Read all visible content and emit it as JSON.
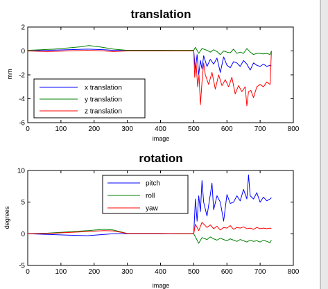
{
  "chart_data": [
    {
      "type": "line",
      "title": "translation",
      "xlabel": "image",
      "ylabel": "mm",
      "xlim": [
        0,
        800
      ],
      "ylim": [
        -6,
        2
      ],
      "xticks": [
        0,
        100,
        200,
        300,
        400,
        500,
        600,
        700,
        800
      ],
      "yticks": [
        -6,
        -4,
        -2,
        0,
        2
      ],
      "grid": false,
      "legend_position": "bottom-left",
      "series": [
        {
          "name": "x translation",
          "color": "#0000ff",
          "x": [
            0,
            60,
            120,
            180,
            230,
            258,
            300,
            400,
            500,
            505,
            510,
            515,
            520,
            525,
            530,
            540,
            550,
            560,
            570,
            580,
            590,
            600,
            610,
            620,
            630,
            640,
            650,
            660,
            670,
            680,
            690,
            700,
            710,
            720,
            730,
            734
          ],
          "values": [
            0,
            0.05,
            0.1,
            0.15,
            0.1,
            0.05,
            0.05,
            0.05,
            0,
            -1.6,
            -0.3,
            -2.0,
            -0.8,
            -1.5,
            -0.4,
            -1.3,
            -0.7,
            -1.1,
            -0.6,
            -1.8,
            -0.5,
            -1.2,
            -1.4,
            -0.9,
            -1.0,
            -1.3,
            -0.8,
            -1.1,
            -1.6,
            -1.0,
            -1.2,
            -1.3,
            -1.1,
            -1.3,
            -1.2,
            -1.25
          ]
        },
        {
          "name": "y translation",
          "color": "#008000",
          "x": [
            0,
            40,
            80,
            120,
            160,
            185,
            215,
            258,
            300,
            400,
            500,
            505,
            515,
            525,
            540,
            550,
            560,
            570,
            580,
            590,
            600,
            610,
            620,
            630,
            640,
            650,
            660,
            670,
            680,
            690,
            700,
            710,
            720,
            730,
            734
          ],
          "values": [
            0.05,
            0.1,
            0.15,
            0.25,
            0.35,
            0.45,
            0.35,
            0.15,
            0.05,
            0.05,
            0.05,
            0.3,
            -0.2,
            0.2,
            0.05,
            -0.1,
            0.1,
            -0.05,
            -0.3,
            0,
            -0.1,
            -0.15,
            0.15,
            -0.2,
            -0.1,
            -0.2,
            0.2,
            -0.1,
            -0.3,
            -0.2,
            -0.2,
            -0.25,
            -0.2,
            -0.3,
            0
          ]
        },
        {
          "name": "z translation",
          "color": "#ff0000",
          "x": [
            0,
            60,
            120,
            180,
            230,
            258,
            300,
            400,
            500,
            503,
            507,
            512,
            516,
            520,
            525,
            530,
            535,
            545,
            555,
            565,
            575,
            585,
            595,
            605,
            615,
            625,
            635,
            645,
            655,
            660,
            665,
            672,
            680,
            690,
            700,
            710,
            720,
            730,
            734
          ],
          "values": [
            0,
            -0.05,
            0,
            0.05,
            0,
            -0.05,
            0,
            0,
            0,
            -2.2,
            -1.0,
            -3.0,
            -2.0,
            -4.5,
            -2.6,
            -1.0,
            -2.0,
            -2.8,
            -1.8,
            -3.2,
            -2.0,
            -2.9,
            -2.4,
            -3.0,
            -2.2,
            -3.6,
            -2.9,
            -3.4,
            -3.0,
            -4.6,
            -3.4,
            -3.3,
            -3.9,
            -3.0,
            -2.8,
            -3.0,
            -2.6,
            -2.8,
            0
          ]
        }
      ]
    },
    {
      "type": "line",
      "title": "rotation",
      "xlabel": "image",
      "ylabel": "degrees",
      "xlim": [
        0,
        800
      ],
      "ylim": [
        -5,
        10
      ],
      "xticks": [
        0,
        100,
        200,
        300,
        400,
        500,
        600,
        700,
        800
      ],
      "yticks": [
        -5,
        0,
        5,
        10
      ],
      "grid": false,
      "legend_position": "top-center",
      "series": [
        {
          "name": "pitch",
          "color": "#0000ff",
          "x": [
            0,
            60,
            120,
            180,
            230,
            258,
            300,
            400,
            500,
            505,
            510,
            515,
            520,
            525,
            530,
            540,
            550,
            555,
            560,
            570,
            580,
            590,
            600,
            610,
            620,
            630,
            640,
            650,
            660,
            665,
            670,
            680,
            690,
            700,
            710,
            720,
            730,
            734
          ],
          "values": [
            0,
            -0.1,
            -0.2,
            -0.3,
            -0.1,
            0,
            0,
            0,
            0,
            5.5,
            2.0,
            6.0,
            3.5,
            8.4,
            5.0,
            2.8,
            6.2,
            8.0,
            3.8,
            6.0,
            5.0,
            2.0,
            6.2,
            4.8,
            5.0,
            6.0,
            5.2,
            7.0,
            5.5,
            9.3,
            6.0,
            5.5,
            6.5,
            5.0,
            5.8,
            5.2,
            5.5,
            5.7
          ]
        },
        {
          "name": "roll",
          "color": "#008000",
          "x": [
            0,
            60,
            120,
            180,
            230,
            258,
            300,
            400,
            500,
            505,
            515,
            525,
            540,
            550,
            560,
            570,
            580,
            590,
            600,
            610,
            620,
            630,
            640,
            650,
            660,
            670,
            680,
            690,
            700,
            710,
            720,
            730,
            734
          ],
          "values": [
            0,
            0.1,
            0.3,
            0.5,
            0.7,
            0.6,
            0.05,
            0.05,
            0,
            -0.5,
            -1.5,
            -0.6,
            -0.9,
            -0.5,
            -0.8,
            -1.0,
            -0.7,
            -0.9,
            -1.1,
            -0.8,
            -1.0,
            -1.2,
            -0.9,
            -1.1,
            -1.3,
            -1.0,
            -1.2,
            -1.1,
            -1.3,
            -1.0,
            -1.2,
            -1.4,
            -1.0
          ]
        },
        {
          "name": "yaw",
          "color": "#ff0000",
          "x": [
            0,
            60,
            120,
            180,
            230,
            258,
            300,
            400,
            500,
            505,
            515,
            525,
            540,
            550,
            560,
            570,
            580,
            590,
            600,
            610,
            620,
            630,
            640,
            650,
            660,
            670,
            680,
            690,
            700,
            710,
            720,
            730,
            734
          ],
          "values": [
            0,
            0.05,
            0.2,
            0.35,
            0.5,
            0.45,
            0.05,
            0.05,
            0,
            1.5,
            0.5,
            1.8,
            1.0,
            1.4,
            0.8,
            1.2,
            0.6,
            1.0,
            0.9,
            1.3,
            0.7,
            1.0,
            0.9,
            1.1,
            0.8,
            0.9,
            0.7,
            1.0,
            0.8,
            0.9,
            0.8,
            0.9,
            0.8
          ]
        }
      ]
    }
  ]
}
